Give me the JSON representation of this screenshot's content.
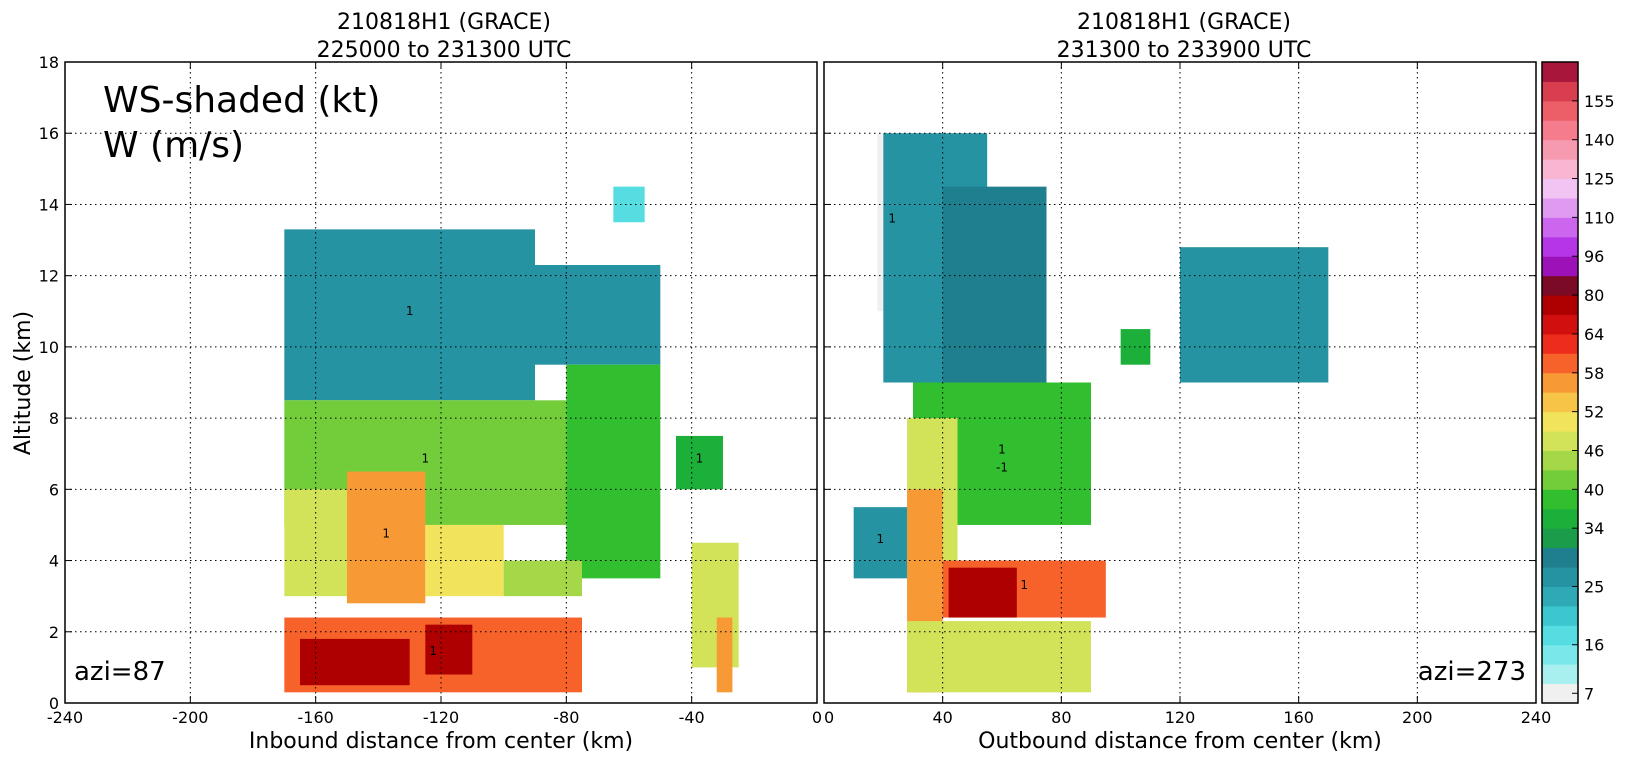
{
  "chart_data": [
    {
      "type": "heatmap",
      "title": "210818H1 (GRACE)",
      "subtitle": "225000 to 231300 UTC",
      "xlabel": "Inbound distance from center (km)",
      "ylabel": "Altitude (km)",
      "xlim": [
        -240,
        0
      ],
      "ylim": [
        0,
        18
      ],
      "x_ticks": [
        "-240",
        "-200",
        "-160",
        "-120",
        "-80",
        "-40",
        "0"
      ],
      "x_tick_values": [
        -240,
        -200,
        -160,
        -120,
        -80,
        -40,
        0
      ],
      "y_ticks": [
        "0",
        "2",
        "4",
        "6",
        "8",
        "10",
        "12",
        "14",
        "16",
        "18"
      ],
      "y_tick_values": [
        0,
        2,
        4,
        6,
        8,
        10,
        12,
        14,
        16,
        18
      ],
      "grid": true,
      "annotations": [
        "WS-shaded (kt)",
        "W (m/s)",
        "azi=87"
      ],
      "contour_label": "1",
      "regions": [
        {
          "x": [
            -170,
            -90
          ],
          "y": [
            8.5,
            13.3
          ],
          "ws": 27
        },
        {
          "x": [
            -90,
            -50
          ],
          "y": [
            9.5,
            12.3
          ],
          "ws": 26
        },
        {
          "x": [
            -65,
            -55
          ],
          "y": [
            13.5,
            14.5
          ],
          "ws": 18
        },
        {
          "x": [
            -170,
            -80
          ],
          "y": [
            5,
            8.5
          ],
          "ws": 42
        },
        {
          "x": [
            -80,
            -50
          ],
          "y": [
            3.5,
            9.5
          ],
          "ws": 38
        },
        {
          "x": [
            -170,
            -140
          ],
          "y": [
            3,
            6
          ],
          "ws": 46
        },
        {
          "x": [
            -150,
            -125
          ],
          "y": [
            2.8,
            6.5
          ],
          "ws": 57
        },
        {
          "x": [
            -125,
            -100
          ],
          "y": [
            3,
            5
          ],
          "ws": 50
        },
        {
          "x": [
            -100,
            -75
          ],
          "y": [
            3,
            4
          ],
          "ws": 44
        },
        {
          "x": [
            -170,
            -75
          ],
          "y": [
            0.3,
            2.4
          ],
          "ws": 60
        },
        {
          "x": [
            -165,
            -130
          ],
          "y": [
            0.5,
            1.8
          ],
          "ws": 74
        },
        {
          "x": [
            -125,
            -110
          ],
          "y": [
            0.8,
            2.2
          ],
          "ws": 74
        },
        {
          "x": [
            -45,
            -30
          ],
          "y": [
            6,
            7.5
          ],
          "ws": 35
        },
        {
          "x": [
            -40,
            -25
          ],
          "y": [
            1,
            4.5
          ],
          "ws": 47
        },
        {
          "x": [
            -32,
            -27
          ],
          "y": [
            0.3,
            2.4
          ],
          "ws": 55
        }
      ]
    },
    {
      "type": "heatmap",
      "title": "210818H1 (GRACE)",
      "subtitle": "231300 to 233900 UTC",
      "xlabel": "Outbound distance from center (km)",
      "ylabel": "",
      "xlim": [
        0,
        240
      ],
      "ylim": [
        0,
        18
      ],
      "x_ticks": [
        "0",
        "40",
        "80",
        "120",
        "160",
        "200",
        "240"
      ],
      "x_tick_values": [
        0,
        40,
        80,
        120,
        160,
        200,
        240
      ],
      "y_tick_values": [
        0,
        2,
        4,
        6,
        8,
        10,
        12,
        14,
        16,
        18
      ],
      "grid": true,
      "annotations": [
        "azi=273"
      ],
      "contour_label": "1",
      "contour_label_neg": "-1",
      "regions": [
        {
          "x": [
            18,
            28
          ],
          "y": [
            11,
            16
          ],
          "ws": 7
        },
        {
          "x": [
            20,
            55
          ],
          "y": [
            9,
            16
          ],
          "ws": 25
        },
        {
          "x": [
            40,
            75
          ],
          "y": [
            8.5,
            14.5
          ],
          "ws": 28
        },
        {
          "x": [
            30,
            90
          ],
          "y": [
            5,
            9
          ],
          "ws": 38
        },
        {
          "x": [
            28,
            45
          ],
          "y": [
            3,
            8
          ],
          "ws": 47
        },
        {
          "x": [
            28,
            40
          ],
          "y": [
            0.3,
            6
          ],
          "ws": 57
        },
        {
          "x": [
            40,
            95
          ],
          "y": [
            2.4,
            4
          ],
          "ws": 58
        },
        {
          "x": [
            42,
            65
          ],
          "y": [
            2.4,
            3.8
          ],
          "ws": 75
        },
        {
          "x": [
            28,
            90
          ],
          "y": [
            0.3,
            2.3
          ],
          "ws": 47
        },
        {
          "x": [
            10,
            28
          ],
          "y": [
            3.5,
            5.5
          ],
          "ws": 27
        },
        {
          "x": [
            120,
            170
          ],
          "y": [
            9,
            12.8
          ],
          "ws": 27
        },
        {
          "x": [
            100,
            110
          ],
          "y": [
            9.5,
            10.5
          ],
          "ws": 35
        }
      ]
    }
  ],
  "colorbar": {
    "tick_labels": [
      "7",
      "16",
      "25",
      "34",
      "40",
      "46",
      "52",
      "58",
      "64",
      "80",
      "96",
      "110",
      "125",
      "140",
      "155"
    ],
    "tick_values": [
      7,
      16,
      25,
      34,
      40,
      46,
      52,
      58,
      64,
      80,
      96,
      110,
      125,
      140,
      155
    ],
    "levels": [
      4,
      10,
      13,
      16,
      19,
      22,
      25,
      28,
      31,
      34,
      37,
      40,
      43,
      46,
      49,
      52,
      55,
      58,
      61,
      64,
      72,
      80,
      88,
      96,
      103,
      110,
      118,
      125,
      133,
      140,
      148,
      155,
      162
    ],
    "colors": [
      "#f0f0f0",
      "#a8f0f0",
      "#7ae8ea",
      "#55dde2",
      "#3cc6cf",
      "#2fa9b6",
      "#2693a2",
      "#1f7f8e",
      "#1b9c4a",
      "#1caf3a",
      "#32bf2f",
      "#73cc3a",
      "#a4d849",
      "#d2e35a",
      "#f2e35d",
      "#f7c448",
      "#f79a36",
      "#f7622a",
      "#ee2c1c",
      "#d20f0f",
      "#ae0000",
      "#7a0a26",
      "#9c12b8",
      "#b436e6",
      "#cc66ee",
      "#e09af2",
      "#f2c4f4",
      "#f8b6d2",
      "#f69ab0",
      "#f47c8c",
      "#ec5e68",
      "#d83e50",
      "#a8173b"
    ]
  }
}
